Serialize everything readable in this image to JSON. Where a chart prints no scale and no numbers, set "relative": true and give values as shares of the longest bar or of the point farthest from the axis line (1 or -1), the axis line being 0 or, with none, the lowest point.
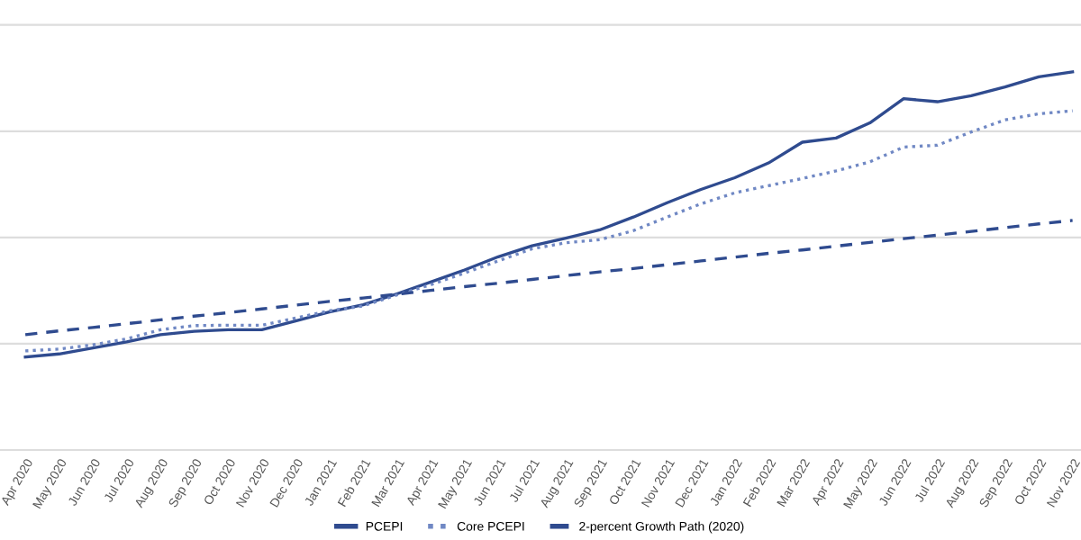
{
  "chart_data": {
    "type": "line",
    "relative": true,
    "grid": "y",
    "legend": "bottom",
    "categories": [
      "Apr 2020",
      "May 2020",
      "Jun 2020",
      "Jul 2020",
      "Aug 2020",
      "Sep 2020",
      "Oct 2020",
      "Nov 2020",
      "Dec 2020",
      "Jan 2021",
      "Feb 2021",
      "Mar 2021",
      "Apr 2021",
      "May 2021",
      "Jun 2021",
      "Jul 2021",
      "Aug 2021",
      "Sep 2021",
      "Oct 2021",
      "Nov 2021",
      "Dec 2021",
      "Jan 2022",
      "Feb 2022",
      "Mar 2022",
      "Apr 2022",
      "May 2022",
      "Jun 2022",
      "Jul 2022",
      "Aug 2022",
      "Sep 2022",
      "Oct 2022",
      "Nov 2022"
    ],
    "series": [
      {
        "name": "PCEPI",
        "color": "#2f4b8f",
        "line_style": "solid",
        "values": [
          0.246,
          0.254,
          0.27,
          0.286,
          0.305,
          0.314,
          0.318,
          0.318,
          0.341,
          0.365,
          0.384,
          0.413,
          0.444,
          0.476,
          0.511,
          0.54,
          0.56,
          0.582,
          0.616,
          0.654,
          0.689,
          0.72,
          0.759,
          0.814,
          0.825,
          0.865,
          0.929,
          0.921,
          0.937,
          0.96,
          0.987,
          1.0
        ]
      },
      {
        "name": "Core PCEPI",
        "color": "#7088c4",
        "line_style": "dotted",
        "values": [
          0.262,
          0.267,
          0.278,
          0.294,
          0.318,
          0.329,
          0.33,
          0.33,
          0.349,
          0.368,
          0.381,
          0.41,
          0.437,
          0.468,
          0.5,
          0.532,
          0.548,
          0.556,
          0.58,
          0.616,
          0.651,
          0.68,
          0.699,
          0.718,
          0.738,
          0.762,
          0.801,
          0.806,
          0.841,
          0.873,
          0.889,
          0.897
        ]
      },
      {
        "name": "2-percent Growth Path (2020)",
        "color": "#2f4b8f",
        "line_style": "dashed",
        "values": [
          0.305,
          0.315,
          0.324,
          0.334,
          0.344,
          0.354,
          0.363,
          0.373,
          0.383,
          0.393,
          0.402,
          0.412,
          0.422,
          0.432,
          0.441,
          0.451,
          0.461,
          0.471,
          0.48,
          0.49,
          0.5,
          0.51,
          0.52,
          0.529,
          0.539,
          0.549,
          0.559,
          0.568,
          0.578,
          0.588,
          0.598,
          0.607
        ]
      }
    ]
  }
}
